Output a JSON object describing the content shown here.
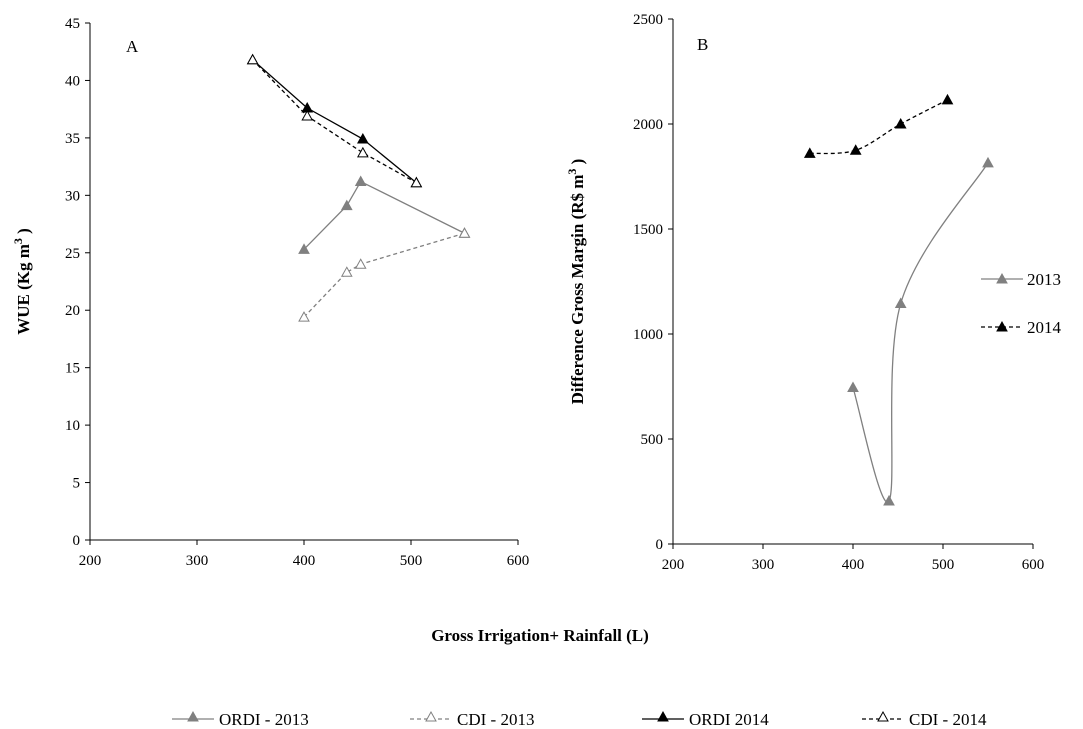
{
  "chart_data": [
    {
      "type": "line",
      "panel_label": "A",
      "ylabel": "WUE (Kg m",
      "ylabel_sup": "3",
      "ylabel_end": " )",
      "xlim": [
        200,
        600
      ],
      "ylim": [
        0,
        45
      ],
      "xticks": [
        200,
        300,
        400,
        500,
        600
      ],
      "yticks": [
        0,
        5,
        10,
        15,
        20,
        25,
        30,
        35,
        40,
        45
      ],
      "series": [
        {
          "name": "ORDI - 2013",
          "color": "#808080",
          "dash": "solid",
          "marker": "filled-triangle",
          "x": [
            400,
            440,
            453,
            550
          ],
          "y": [
            25.3,
            29.1,
            31.2,
            26.7
          ]
        },
        {
          "name": "CDI - 2013",
          "color": "#808080",
          "dash": "dashed",
          "marker": "open-triangle",
          "x": [
            400,
            440,
            453,
            550
          ],
          "y": [
            19.4,
            23.3,
            24.0,
            26.7
          ]
        },
        {
          "name": "ORDI 2014",
          "color": "#000000",
          "dash": "solid",
          "marker": "filled-triangle",
          "x": [
            352,
            403,
            455,
            505
          ],
          "y": [
            41.8,
            37.6,
            34.9,
            31.1
          ]
        },
        {
          "name": "CDI - 2014",
          "color": "#000000",
          "dash": "dashed",
          "marker": "open-triangle",
          "x": [
            352,
            403,
            455,
            505
          ],
          "y": [
            41.8,
            36.9,
            33.7,
            31.1
          ]
        }
      ],
      "grid": false
    },
    {
      "type": "line",
      "panel_label": "B",
      "ylabel": "Difference Gross Margin (R$ m",
      "ylabel_sup": "3",
      "ylabel_end": " )",
      "xlim": [
        200,
        600
      ],
      "ylim": [
        0,
        2500
      ],
      "xticks": [
        200,
        300,
        400,
        500,
        600
      ],
      "yticks": [
        0,
        500,
        1000,
        1500,
        2000,
        2500
      ],
      "series": [
        {
          "name": "2013",
          "color": "#808080",
          "dash": "solid",
          "marker": "filled-triangle",
          "x": [
            400,
            440,
            453,
            550
          ],
          "y": [
            745,
            205,
            1145,
            1815
          ]
        },
        {
          "name": "2014",
          "color": "#000000",
          "dash": "dashed",
          "marker": "filled-triangle",
          "x": [
            352,
            403,
            453,
            505
          ],
          "y": [
            1860,
            1875,
            2000,
            2115
          ]
        }
      ],
      "legend": "right",
      "grid": false
    }
  ],
  "shared_xlabel": "Gross Irrigation+ Rainfall (L)",
  "legend_entries": [
    "ORDI - 2013",
    "CDI - 2013",
    "ORDI 2014",
    "CDI - 2014"
  ]
}
